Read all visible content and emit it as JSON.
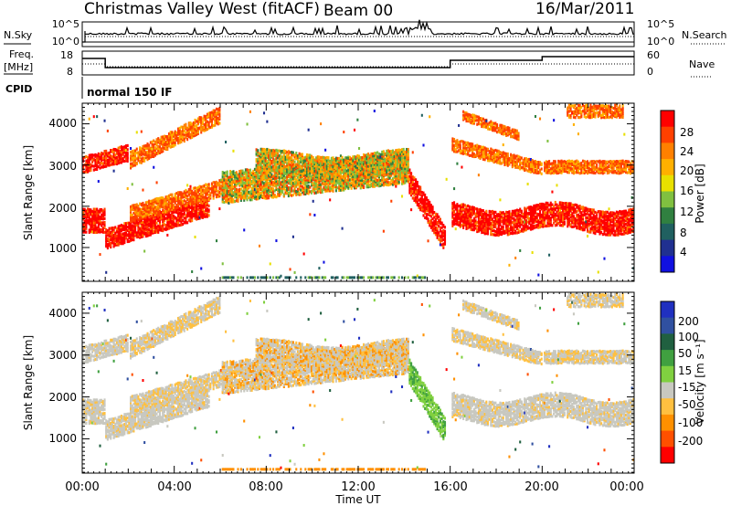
{
  "header": {
    "station": "Christmas Valley West (fitACF)",
    "beam": "Beam 00",
    "date": "16/Mar/2011"
  },
  "top_panels": {
    "nsky_label": "N.Sky",
    "nsky_ticks": [
      "10^5",
      "10^0"
    ],
    "nsearch_label": "N.Search",
    "nsearch_ticks": [
      "10^5",
      "10^0"
    ],
    "freq_label": "Freq.",
    "freq_unit": "[MHz]",
    "freq_ticks": [
      "18",
      "8"
    ],
    "nave_label": "Nave",
    "nave_ticks": [
      "60",
      "0"
    ],
    "cpid_label": "CPID",
    "cpid_value": "normal 150 IF"
  },
  "chart_data": [
    {
      "type": "heatmap",
      "name": "power",
      "ylabel": "Slant Range [km]",
      "yticks": [
        "4000",
        "3000",
        "2000",
        "1000"
      ],
      "ylim": [
        180,
        4500
      ],
      "colorbar_label": "Power [dB]",
      "colorbar_ticks": [
        "28",
        "24",
        "20",
        "16",
        "12",
        "8",
        "4"
      ],
      "colorbar_colors": [
        "#ff0000",
        "#ff4000",
        "#ff8000",
        "#ffb000",
        "#e8e000",
        "#80c040",
        "#308040",
        "#206060",
        "#203090",
        "#1010e0"
      ]
    },
    {
      "type": "heatmap",
      "name": "velocity",
      "ylabel": "Slant Range [km]",
      "yticks": [
        "4000",
        "3000",
        "2000",
        "1000"
      ],
      "ylim": [
        180,
        4500
      ],
      "colorbar_label": "Velocity [m s⁻¹]",
      "colorbar_ticks": [
        "200",
        "100",
        "50",
        "15",
        "-15",
        "-50",
        "-100",
        "-200"
      ],
      "colorbar_colors": [
        "#2030c0",
        "#3050a0",
        "#206040",
        "#40a040",
        "#80d040",
        "#c8c8c0",
        "#ffc040",
        "#ff9000",
        "#ff5000",
        "#ff0000"
      ]
    }
  ],
  "time_axis": {
    "label": "Time UT",
    "ticks": [
      "00:00",
      "04:00",
      "08:00",
      "12:00",
      "16:00",
      "20:00",
      "00:00"
    ]
  }
}
